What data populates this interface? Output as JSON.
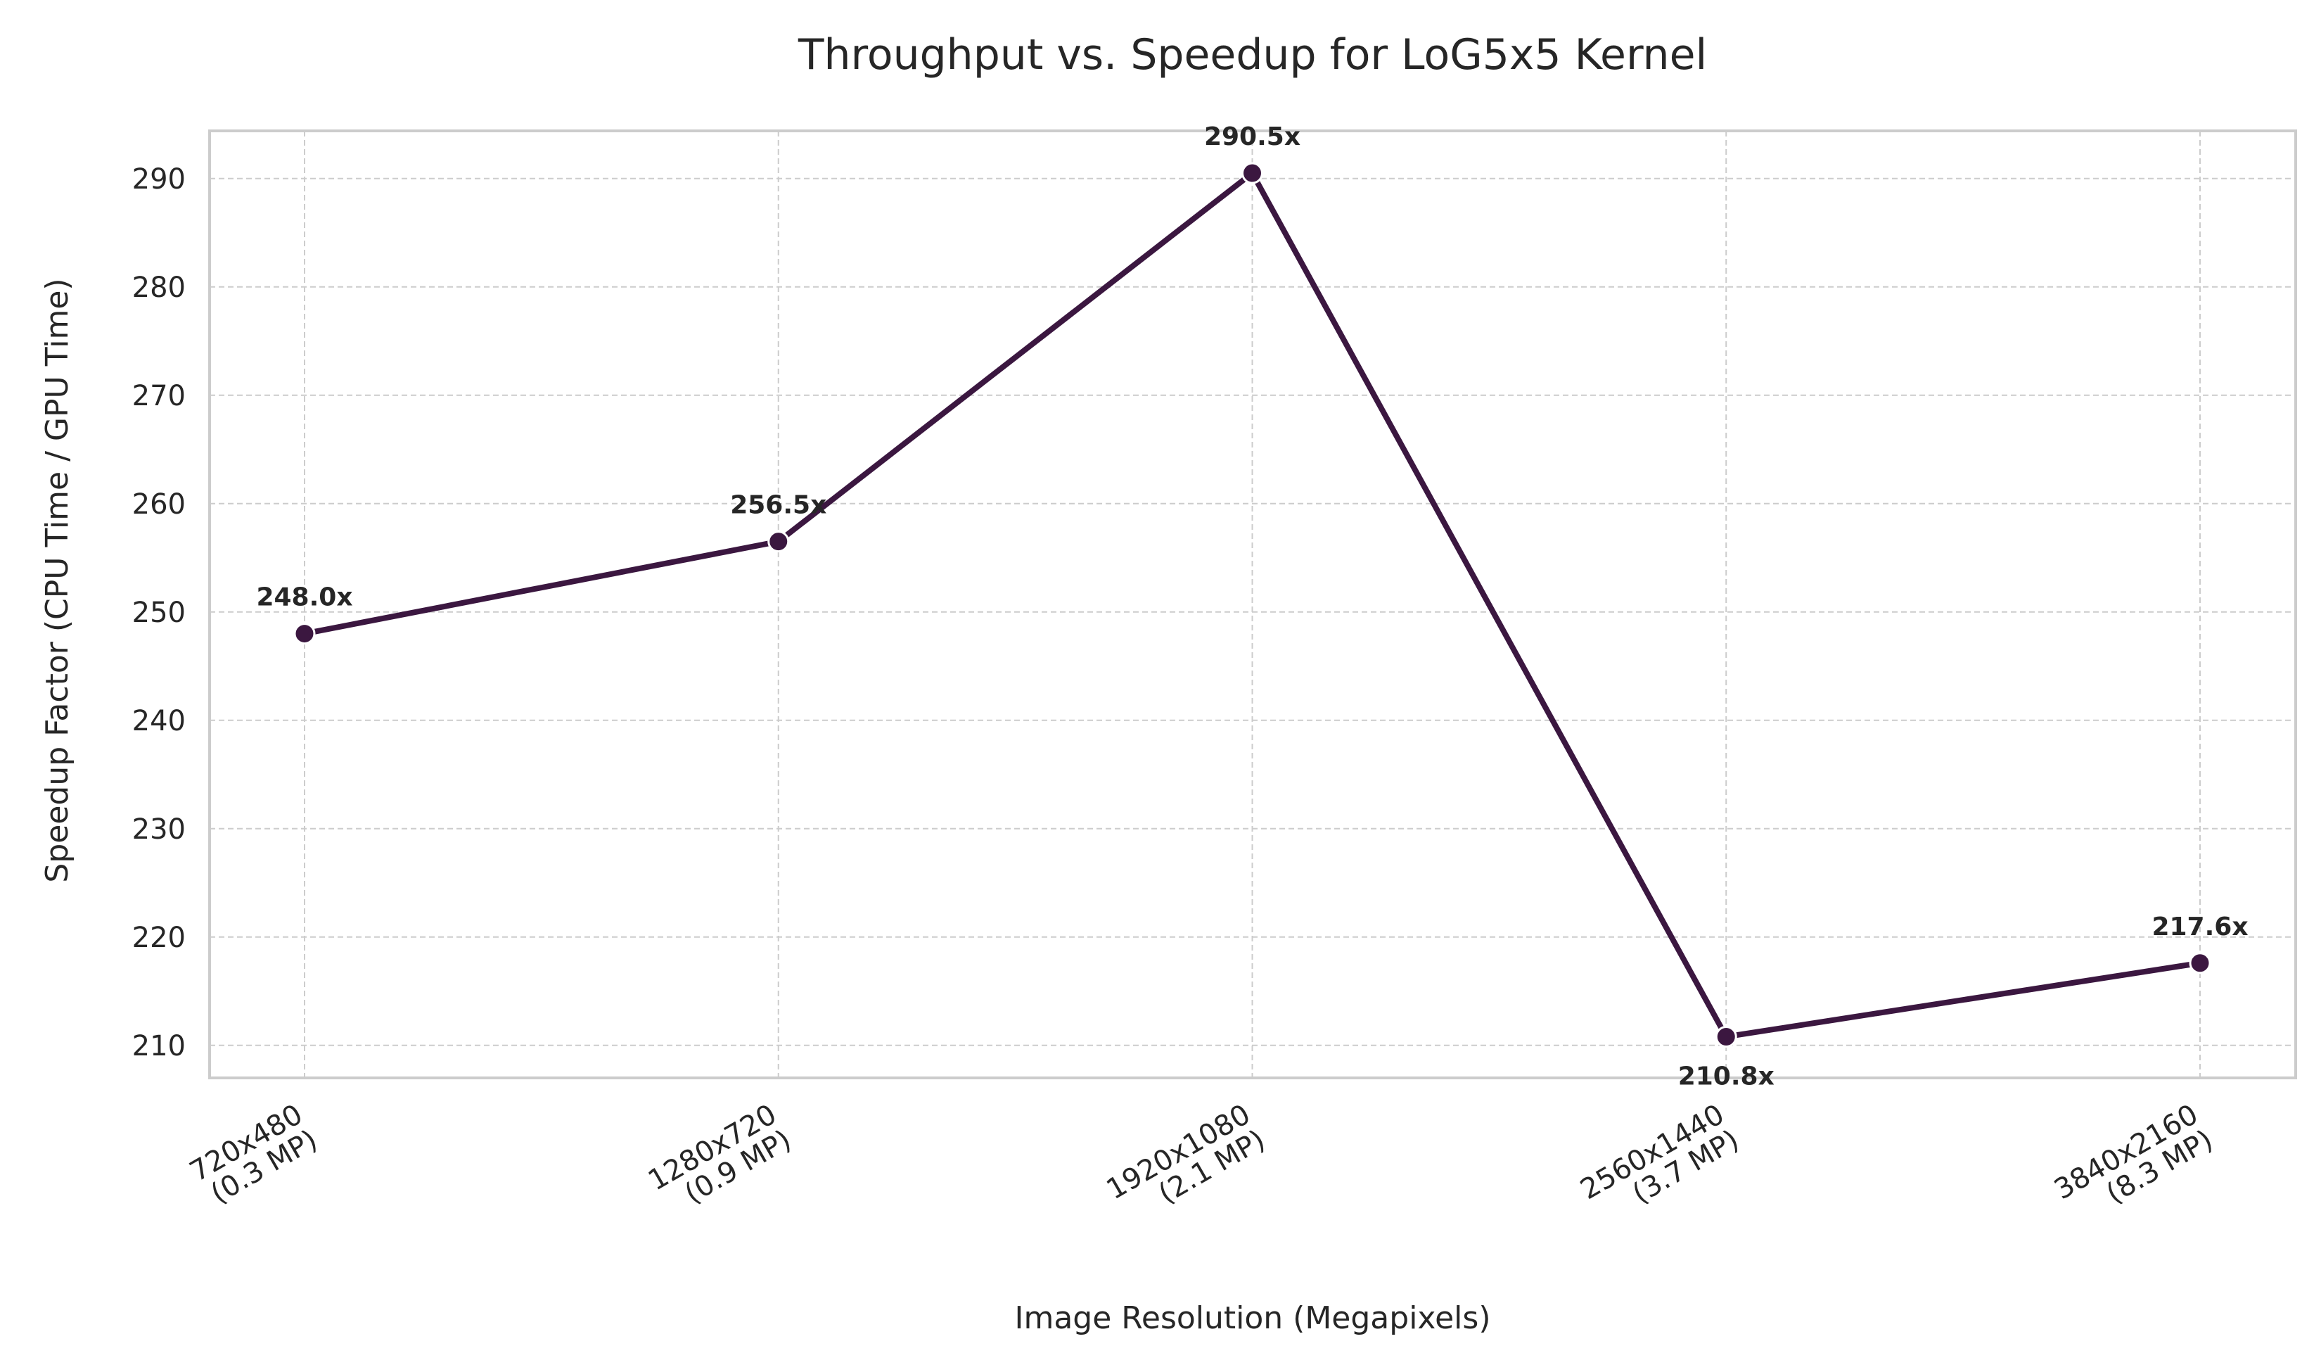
{
  "chart_data": {
    "type": "line",
    "title": "Throughput vs. Speedup for LoG5x5 Kernel",
    "xlabel": "Image Resolution (Megapixels)",
    "ylabel": "Speedup Factor (CPU Time / GPU Time)",
    "categories": [
      [
        "720x480",
        "(0.3 MP)"
      ],
      [
        "1280x720",
        "(0.9 MP)"
      ],
      [
        "1920x1080",
        "(2.1 MP)"
      ],
      [
        "2560x1440",
        "(3.7 MP)"
      ],
      [
        "3840x2160",
        "(8.3 MP)"
      ]
    ],
    "series": [
      {
        "values": [
          248.0,
          256.5,
          290.5,
          210.8,
          217.6
        ],
        "color": "#3b1740"
      }
    ],
    "data_labels": [
      "248.0x",
      "256.5x",
      "290.5x",
      "210.8x",
      "217.6x"
    ],
    "data_label_placement": [
      "above",
      "above",
      "above",
      "below",
      "above"
    ],
    "y_ticks": [
      210,
      220,
      230,
      240,
      250,
      260,
      270,
      280,
      290
    ],
    "ylim": [
      207.0,
      294.4
    ],
    "grid": true,
    "legend": "none"
  }
}
